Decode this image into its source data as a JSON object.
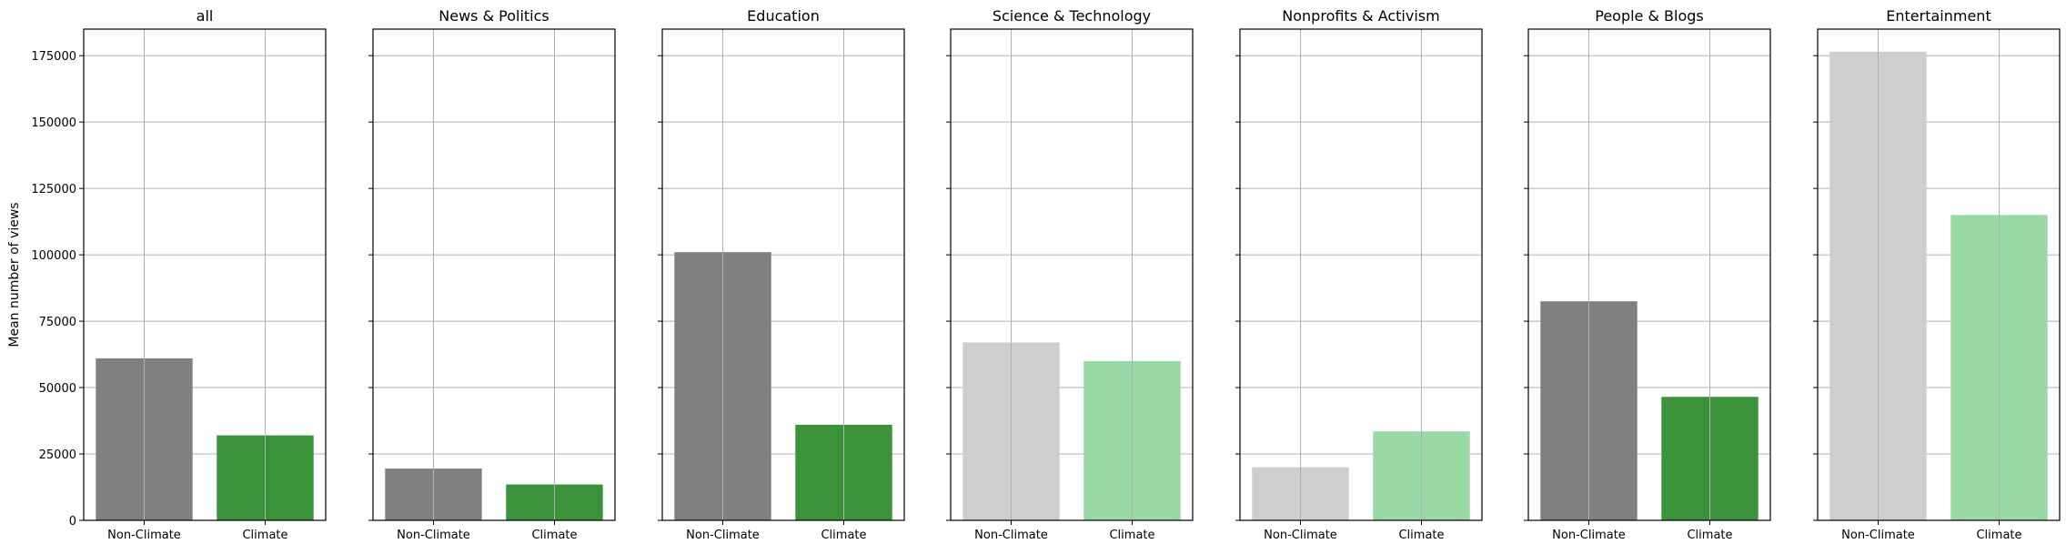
{
  "chart_data": {
    "type": "bar",
    "ylabel": "Mean number of views",
    "ylim": [
      0,
      185000
    ],
    "yticks": [
      0,
      25000,
      50000,
      75000,
      100000,
      125000,
      150000,
      175000
    ],
    "grid": true,
    "colors": {
      "non_climate_strong": "#808080",
      "climate_strong": "#3a923a",
      "non_climate_light": "#cecece",
      "climate_light": "#98d9a5",
      "grid": "#b0b0b0",
      "axes": "#000000"
    },
    "panels": [
      {
        "title": "all",
        "categories": [
          "Non-Climate",
          "Climate"
        ],
        "values": [
          61000,
          32000
        ],
        "shade": "strong"
      },
      {
        "title": "News & Politics",
        "categories": [
          "Non-Climate",
          "Climate"
        ],
        "values": [
          19500,
          13500
        ],
        "shade": "strong"
      },
      {
        "title": "Education",
        "categories": [
          "Non-Climate",
          "Climate"
        ],
        "values": [
          101000,
          36000
        ],
        "shade": "strong"
      },
      {
        "title": "Science & Technology",
        "categories": [
          "Non-Climate",
          "Climate"
        ],
        "values": [
          67000,
          60000
        ],
        "shade": "light"
      },
      {
        "title": "Nonprofits & Activism",
        "categories": [
          "Non-Climate",
          "Climate"
        ],
        "values": [
          20000,
          33500
        ],
        "shade": "light"
      },
      {
        "title": "People & Blogs",
        "categories": [
          "Non-Climate",
          "Climate"
        ],
        "values": [
          82500,
          46500
        ],
        "shade": "strong"
      },
      {
        "title": "Entertainment",
        "categories": [
          "Non-Climate",
          "Climate"
        ],
        "values": [
          176500,
          115000
        ],
        "shade": "light"
      }
    ]
  }
}
